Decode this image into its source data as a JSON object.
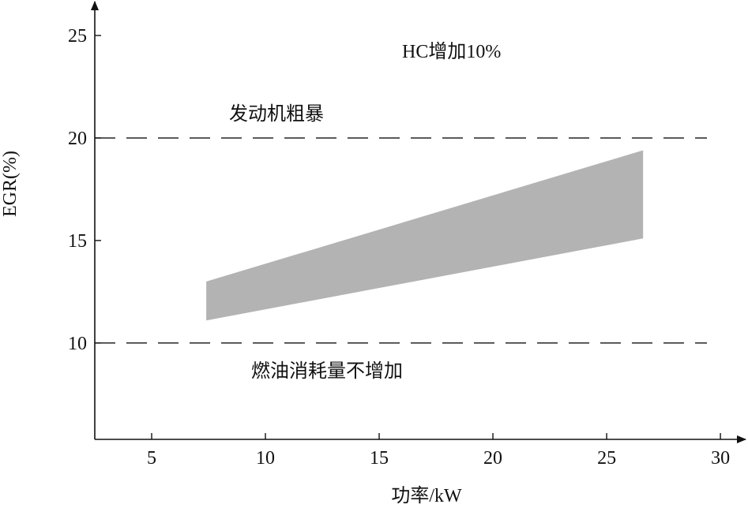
{
  "chart_data": {
    "type": "area",
    "title": "",
    "xlabel": "功率/kW",
    "ylabel": "EGR(%)",
    "xlim": [
      2.5,
      30.9
    ],
    "ylim": [
      5.3,
      26.5
    ],
    "x_ticks": [
      5,
      10,
      15,
      20,
      25,
      30
    ],
    "y_ticks": [
      10,
      15,
      20,
      25
    ],
    "grid": false,
    "band": {
      "x": [
        7.4,
        26.6
      ],
      "upper": [
        13.0,
        19.4
      ],
      "lower": [
        11.1,
        15.1
      ],
      "color": "#b3b3b3"
    },
    "reference_lines": [
      {
        "y": 20,
        "style": "dashed",
        "label": "发动机粗暴"
      },
      {
        "y": 10,
        "style": "dashed",
        "label": "燃油消耗量不增加"
      }
    ],
    "annotations": [
      {
        "text": "HC增加10%"
      }
    ]
  }
}
